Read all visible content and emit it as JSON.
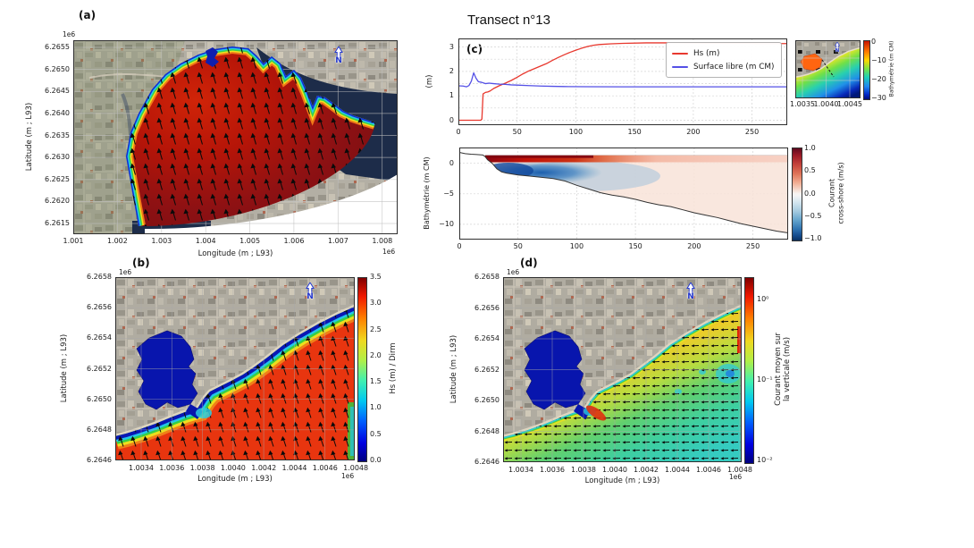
{
  "panel_a": {
    "label": "(a)",
    "y_offset": "1e6",
    "x_offset": "1e6",
    "xlabel": "Longitude (m ; L93)",
    "ylabel": "Latitude (m ; L93)",
    "yticks": [
      "6.2655",
      "6.2650",
      "6.2645",
      "6.2640",
      "6.2635",
      "6.2630",
      "6.2625",
      "6.2620",
      "6.2615"
    ],
    "xticks": [
      "1.001",
      "1.002",
      "1.003",
      "1.004",
      "1.005",
      "1.006",
      "1.007",
      "1.008"
    ],
    "north": "N"
  },
  "panel_b": {
    "label": "(b)",
    "y_offset": "1e6",
    "x_offset": "1e6",
    "xlabel": "Longitude (m ; L93)",
    "ylabel": "Latitude (m ; L93)",
    "yticks": [
      "6.2658",
      "6.2656",
      "6.2654",
      "6.2652",
      "6.2650",
      "6.2648",
      "6.2646"
    ],
    "xticks": [
      "1.0034",
      "1.0036",
      "1.0038",
      "1.0040",
      "1.0042",
      "1.0044",
      "1.0046",
      "1.0048"
    ],
    "colorbar": {
      "label": "Hs (m) / Dirm",
      "ticks": [
        "3.5",
        "3.0",
        "2.5",
        "2.0",
        "1.5",
        "1.0",
        "0.5",
        "0.0"
      ]
    },
    "north": "N"
  },
  "panel_c": {
    "title": "Transect n°13",
    "label": "(c)",
    "line_plot": {
      "ylabel": "(m)",
      "yticks": [
        "3",
        "2",
        "1",
        "0"
      ],
      "xticks": [
        "0",
        "50",
        "100",
        "150",
        "200",
        "250"
      ]
    },
    "section_plot": {
      "ylabel": "Bathymétrie (m CM)",
      "yticks": [
        "0",
        "−5",
        "−10"
      ],
      "xticks": [
        "0",
        "50",
        "100",
        "150",
        "200",
        "250"
      ],
      "colorbar": {
        "label_line1": "Courant",
        "label_line2": "cross-shore (m/s)",
        "ticks": [
          "1.0",
          "0.5",
          "0.0",
          "−0.5",
          "−1.0"
        ]
      }
    },
    "inset": {
      "xticks": [
        "1.0035",
        "1.0040",
        "1.0045"
      ],
      "colorbar": {
        "label": "Bathymétrie (m CM)",
        "ticks": [
          "0",
          "−10",
          "−20",
          "−30"
        ]
      },
      "north": "N"
    }
  },
  "panel_d": {
    "label": "(d)",
    "y_offset": "1e6",
    "x_offset": "1e6",
    "xlabel": "Longitude (m ; L93)",
    "ylabel": "Latitude (m ; L93)",
    "yticks": [
      "6.2658",
      "6.2656",
      "6.2654",
      "6.2652",
      "6.2650",
      "6.2648",
      "6.2646"
    ],
    "xticks": [
      "1.0034",
      "1.0036",
      "1.0038",
      "1.0040",
      "1.0042",
      "1.0044",
      "1.0046",
      "1.0048"
    ],
    "colorbar": {
      "label_line1": "Courant moyen sur",
      "label_line2": "la verticale (m/s)",
      "ticks": [
        "10⁰",
        "10⁻¹",
        "10⁻²"
      ]
    },
    "north": "N"
  },
  "chart_data": [
    {
      "id": "transect_lines",
      "type": "line",
      "title": "Transect n°13",
      "xlabel": "",
      "ylabel": "(m)",
      "xlim": [
        0,
        280
      ],
      "ylim": [
        -0.2,
        3.35
      ],
      "xticks": [
        0,
        50,
        100,
        150,
        200,
        250
      ],
      "yticks": [
        0,
        0.5,
        1,
        1.5,
        2,
        2.5,
        3
      ],
      "legend_position": "upper right",
      "series": [
        {
          "name": "Hs (m)",
          "color": "#e8382e",
          "x": [
            0,
            5,
            10,
            15,
            19,
            20,
            21,
            23,
            25,
            27,
            30,
            35,
            40,
            45,
            50,
            55,
            60,
            65,
            70,
            75,
            80,
            85,
            90,
            95,
            100,
            105,
            110,
            115,
            120,
            130,
            140,
            160,
            180,
            200,
            220,
            240,
            260,
            280
          ],
          "y": [
            0,
            0,
            0,
            0,
            0,
            0.05,
            1.08,
            1.14,
            1.16,
            1.2,
            1.3,
            1.42,
            1.52,
            1.63,
            1.76,
            1.9,
            2.02,
            2.12,
            2.22,
            2.32,
            2.45,
            2.57,
            2.68,
            2.78,
            2.87,
            2.95,
            3.02,
            3.07,
            3.1,
            3.13,
            3.15,
            3.17,
            3.17,
            3.16,
            3.15,
            3.15,
            3.14,
            3.14
          ]
        },
        {
          "name": "Surface libre (m CM)",
          "color": "#5450e6",
          "x": [
            0,
            4,
            7,
            9,
            11,
            13,
            15,
            17,
            20,
            23,
            26,
            30,
            35,
            40,
            45,
            50,
            60,
            70,
            80,
            90,
            110,
            140,
            180,
            220,
            260,
            280
          ],
          "y": [
            1.41,
            1.4,
            1.37,
            1.42,
            1.6,
            1.94,
            1.72,
            1.58,
            1.55,
            1.5,
            1.52,
            1.5,
            1.48,
            1.47,
            1.45,
            1.44,
            1.42,
            1.4,
            1.39,
            1.38,
            1.375,
            1.37,
            1.37,
            1.37,
            1.37,
            1.37
          ]
        }
      ]
    },
    {
      "id": "transect_section",
      "type": "area",
      "ylabel": "Bathymétrie (m CM)",
      "xlim": [
        0,
        280
      ],
      "ylim": [
        -12.5,
        2.6
      ],
      "xticks": [
        0,
        50,
        100,
        150,
        200,
        250
      ],
      "yticks": [
        0,
        -5,
        -10
      ],
      "surface_level": 1.35,
      "colorbar": {
        "label": "Courant cross-shore (m/s)",
        "cmap": "RdBu_r",
        "vmin": -1.0,
        "vmax": 1.0
      },
      "bathymetry": {
        "x": [
          0,
          5,
          10,
          15,
          20,
          22,
          24,
          28,
          32,
          36,
          40,
          50,
          60,
          70,
          80,
          90,
          100,
          110,
          120,
          130,
          140,
          150,
          160,
          170,
          180,
          190,
          200,
          210,
          220,
          230,
          240,
          250,
          260,
          270,
          280
        ],
        "y": [
          1.8,
          1.6,
          1.5,
          1.45,
          1.38,
          1.1,
          0.6,
          0.0,
          -0.9,
          -1.4,
          -1.6,
          -1.9,
          -2.1,
          -2.3,
          -2.5,
          -2.9,
          -3.6,
          -4.2,
          -4.8,
          -5.2,
          -5.5,
          -5.9,
          -6.4,
          -6.8,
          -7.1,
          -7.6,
          -8.1,
          -8.5,
          -8.9,
          -9.4,
          -9.9,
          -10.3,
          -10.7,
          -11.1,
          -11.4
        ]
      }
    }
  ]
}
